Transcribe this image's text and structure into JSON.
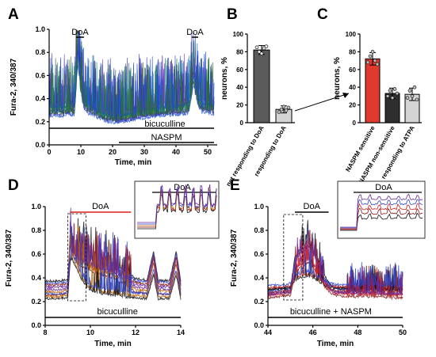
{
  "figure": {
    "panel_labels": [
      "A",
      "B",
      "C",
      "D",
      "E"
    ]
  },
  "chart_data": [
    {
      "panel": "A",
      "type": "line",
      "xlabel": "Time, min",
      "ylabel": "Fura-2, 340/387",
      "xlim": [
        0,
        53
      ],
      "ylim": [
        0.0,
        1.0
      ],
      "x_ticks": [
        0,
        10,
        20,
        30,
        40,
        50
      ],
      "x_tick_labels": [
        "0",
        "10",
        "20",
        "30",
        "40",
        "50"
      ],
      "y_ticks": [
        0.0,
        0.2,
        0.4,
        0.6,
        0.8,
        1.0
      ],
      "y_tick_labels": [
        "0.0",
        "0.2",
        "0.4",
        "0.6",
        "0.8",
        "1.0"
      ],
      "annotations": [
        {
          "text": "DoA",
          "x_start": 8.5,
          "x_end": 11
        },
        {
          "text": "DoA",
          "x_start": 45,
          "x_end": 47
        }
      ],
      "application_bars": [
        {
          "text": "bicuculline",
          "x_start": 0,
          "x_end": 52
        },
        {
          "text": "NASPM",
          "x_start": 22,
          "x_end": 52
        }
      ],
      "series_colors": [
        "#1f4fd6",
        "#2e6b2e",
        "#7a3fc0",
        "#1a8a8a",
        "#3333aa"
      ],
      "series": [
        {
          "x": [
            0,
            1,
            2,
            3,
            4,
            5,
            6,
            7,
            8,
            8.5,
            9,
            9.5,
            10,
            10.5,
            11,
            12,
            13,
            14,
            15,
            16,
            18,
            20,
            22,
            24,
            26,
            28,
            30,
            32,
            34,
            36,
            38,
            40,
            42,
            44,
            45,
            45.5,
            46,
            46.5,
            47,
            48,
            49,
            50,
            51,
            52
          ],
          "y": [
            0.3,
            0.32,
            0.31,
            0.33,
            0.3,
            0.32,
            0.31,
            0.33,
            0.32,
            0.55,
            0.85,
            0.75,
            0.55,
            0.42,
            0.38,
            0.34,
            0.33,
            0.32,
            0.3,
            0.27,
            0.25,
            0.24,
            0.23,
            0.24,
            0.25,
            0.27,
            0.28,
            0.29,
            0.29,
            0.3,
            0.31,
            0.31,
            0.32,
            0.33,
            0.5,
            0.66,
            0.6,
            0.45,
            0.38,
            0.35,
            0.34,
            0.33,
            0.34,
            0.33
          ]
        },
        {
          "x": [
            0,
            2,
            4,
            6,
            8,
            8.5,
            9,
            9.5,
            10,
            11,
            12,
            14,
            16,
            18,
            20,
            22,
            24,
            26,
            28,
            30,
            32,
            34,
            36,
            38,
            40,
            42,
            44,
            45,
            45.5,
            46,
            47,
            48,
            50,
            52
          ],
          "y": [
            0.34,
            0.35,
            0.34,
            0.36,
            0.35,
            0.62,
            0.8,
            0.7,
            0.52,
            0.4,
            0.36,
            0.34,
            0.3,
            0.28,
            0.27,
            0.27,
            0.28,
            0.29,
            0.31,
            0.32,
            0.33,
            0.33,
            0.34,
            0.35,
            0.35,
            0.36,
            0.37,
            0.55,
            0.62,
            0.55,
            0.42,
            0.38,
            0.37,
            0.36
          ]
        },
        {
          "x": [
            0,
            2,
            4,
            6,
            8,
            8.5,
            9,
            9.5,
            10,
            11,
            12,
            14,
            16,
            18,
            20,
            22,
            24,
            26,
            28,
            30,
            32,
            34,
            36,
            38,
            40,
            42,
            44,
            45,
            45.5,
            46,
            47,
            48,
            50,
            52
          ],
          "y": [
            0.27,
            0.28,
            0.27,
            0.29,
            0.28,
            0.5,
            0.72,
            0.62,
            0.45,
            0.34,
            0.3,
            0.28,
            0.25,
            0.23,
            0.22,
            0.22,
            0.23,
            0.24,
            0.25,
            0.26,
            0.27,
            0.27,
            0.28,
            0.28,
            0.29,
            0.29,
            0.3,
            0.45,
            0.55,
            0.48,
            0.36,
            0.31,
            0.3,
            0.29
          ]
        }
      ]
    },
    {
      "panel": "B",
      "type": "bar",
      "ylabel": "neurons, %",
      "ylim": [
        0,
        100
      ],
      "y_ticks": [
        0,
        20,
        40,
        60,
        80,
        100
      ],
      "y_tick_labels": [
        "0",
        "20",
        "40",
        "60",
        "80",
        "100"
      ],
      "categories": [
        "not responding to DoA",
        "responding to DoA"
      ],
      "values": [
        82,
        15
      ],
      "errors": [
        5,
        4
      ],
      "bar_colors": [
        "#5a5a5a",
        "#d4d4d4"
      ],
      "points": [
        [
          85,
          80,
          78,
          84,
          86
        ],
        [
          12,
          15,
          18,
          14,
          17
        ]
      ]
    },
    {
      "panel": "C",
      "type": "bar",
      "ylabel": "neurons, %",
      "ylim": [
        0,
        100
      ],
      "y_ticks": [
        0,
        20,
        40,
        60,
        80,
        100
      ],
      "y_tick_labels": [
        "0",
        "20",
        "40",
        "60",
        "80",
        "100"
      ],
      "categories": [
        "NASPM sensitive",
        "NASPM non-sensitive",
        "responding to ATPA"
      ],
      "values": [
        72,
        33,
        32
      ],
      "errors": [
        7,
        6,
        7
      ],
      "bar_colors": [
        "#e03a2e",
        "#2e2e2e",
        "#d4d4d4"
      ],
      "points": [
        [
          68,
          75,
          80,
          70,
          66
        ],
        [
          30,
          36,
          28,
          38,
          33
        ],
        [
          28,
          36,
          30,
          40,
          26
        ]
      ]
    },
    {
      "panel": "D",
      "type": "line",
      "xlabel": "Time, min",
      "ylabel": "Fura-2, 340/387",
      "xlim": [
        8,
        14
      ],
      "ylim": [
        0.0,
        1.0
      ],
      "x_ticks": [
        8,
        10,
        12,
        14
      ],
      "x_tick_labels": [
        "8",
        "10",
        "12",
        "14"
      ],
      "y_ticks": [
        0.0,
        0.2,
        0.4,
        0.6,
        0.8,
        1.0
      ],
      "y_tick_labels": [
        "0.0",
        "0.2",
        "0.4",
        "0.6",
        "0.8",
        "1.0"
      ],
      "annotations": [
        {
          "text": "DoA",
          "x_start": 9.1,
          "x_end": 11.8
        }
      ],
      "inset_label": "DoA",
      "application_bars": [
        {
          "text": "bicuculline",
          "x_start": 8,
          "x_end": 14
        }
      ],
      "series_colors": [
        "#111111",
        "#8b1a1a",
        "#c06000",
        "#2b44d0",
        "#6a2a9a"
      ],
      "series": [
        {
          "x": [
            8,
            8.5,
            9,
            9.1,
            9.2,
            9.4,
            9.6,
            9.8,
            10,
            10.3,
            10.6,
            11,
            11.4,
            11.8,
            12,
            12.5,
            12.8,
            13,
            13.5,
            13.8,
            14
          ],
          "y": [
            0.35,
            0.35,
            0.36,
            0.7,
            0.65,
            0.6,
            0.58,
            0.55,
            0.55,
            0.52,
            0.5,
            0.48,
            0.45,
            0.4,
            0.37,
            0.36,
            0.6,
            0.36,
            0.35,
            0.6,
            0.35
          ]
        },
        {
          "x": [
            8,
            8.5,
            9,
            9.1,
            9.2,
            9.4,
            9.6,
            9.8,
            10,
            10.3,
            10.6,
            11,
            11.4,
            11.8,
            12,
            12.5,
            12.8,
            13,
            13.5,
            13.8,
            14
          ],
          "y": [
            0.28,
            0.28,
            0.29,
            0.75,
            0.62,
            0.55,
            0.52,
            0.5,
            0.48,
            0.46,
            0.44,
            0.42,
            0.38,
            0.33,
            0.3,
            0.29,
            0.55,
            0.29,
            0.28,
            0.55,
            0.28
          ]
        },
        {
          "x": [
            8,
            8.5,
            9,
            9.1,
            9.2,
            9.4,
            9.6,
            9.8,
            10,
            10.3,
            10.6,
            11,
            11.4,
            11.8,
            12,
            12.5,
            12.8,
            13,
            13.5,
            13.8,
            14
          ],
          "y": [
            0.25,
            0.25,
            0.26,
            0.55,
            0.58,
            0.5,
            0.42,
            0.36,
            0.32,
            0.3,
            0.29,
            0.28,
            0.27,
            0.26,
            0.26,
            0.25,
            0.45,
            0.25,
            0.25,
            0.45,
            0.25
          ]
        }
      ]
    },
    {
      "panel": "E",
      "type": "line",
      "xlabel": "Time, min",
      "ylabel": "Fura-2, 340/387",
      "xlim": [
        44,
        50
      ],
      "ylim": [
        0.0,
        1.0
      ],
      "x_ticks": [
        44,
        46,
        48,
        50
      ],
      "x_tick_labels": [
        "44",
        "46",
        "48",
        "50"
      ],
      "y_ticks": [
        0.0,
        0.2,
        0.4,
        0.6,
        0.8,
        1.0
      ],
      "y_tick_labels": [
        "0.0",
        "0.2",
        "0.4",
        "0.6",
        "0.8",
        "1.0"
      ],
      "annotations": [
        {
          "text": "DoA",
          "x_start": 45.2,
          "x_end": 46.7
        }
      ],
      "inset_label": "DoA",
      "application_bars": [
        {
          "text": "bicuculline + NASPM",
          "x_start": 44,
          "x_end": 50
        }
      ],
      "series_colors": [
        "#111111",
        "#8b1a1a",
        "#d01a1a",
        "#2b44d0",
        "#6a2a9a"
      ],
      "series": [
        {
          "x": [
            44,
            44.4,
            44.8,
            45,
            45.2,
            45.4,
            45.6,
            45.8,
            46,
            46.2,
            46.5,
            46.8,
            47,
            47.5,
            48,
            48.5,
            49,
            49.5,
            50
          ],
          "y": [
            0.28,
            0.29,
            0.3,
            0.3,
            0.55,
            0.62,
            0.65,
            0.68,
            0.62,
            0.55,
            0.4,
            0.32,
            0.3,
            0.3,
            0.29,
            0.3,
            0.29,
            0.29,
            0.29
          ]
        },
        {
          "x": [
            44,
            44.4,
            44.8,
            45,
            45.2,
            45.4,
            45.6,
            45.8,
            46,
            46.2,
            46.5,
            46.8,
            47,
            47.5,
            48,
            48.5,
            49,
            49.5,
            50
          ],
          "y": [
            0.25,
            0.26,
            0.27,
            0.27,
            0.45,
            0.5,
            0.52,
            0.55,
            0.5,
            0.45,
            0.35,
            0.29,
            0.27,
            0.26,
            0.26,
            0.26,
            0.26,
            0.25,
            0.25
          ]
        },
        {
          "x": [
            44,
            44.4,
            44.8,
            45,
            45.2,
            45.4,
            45.6,
            45.8,
            46,
            46.2,
            46.5,
            46.8,
            47,
            47.5,
            48,
            48.5,
            49,
            49.5,
            50
          ],
          "y": [
            0.32,
            0.33,
            0.33,
            0.34,
            0.4,
            0.42,
            0.43,
            0.44,
            0.42,
            0.4,
            0.36,
            0.34,
            0.33,
            0.33,
            0.32,
            0.33,
            0.32,
            0.32,
            0.32
          ]
        }
      ]
    }
  ]
}
